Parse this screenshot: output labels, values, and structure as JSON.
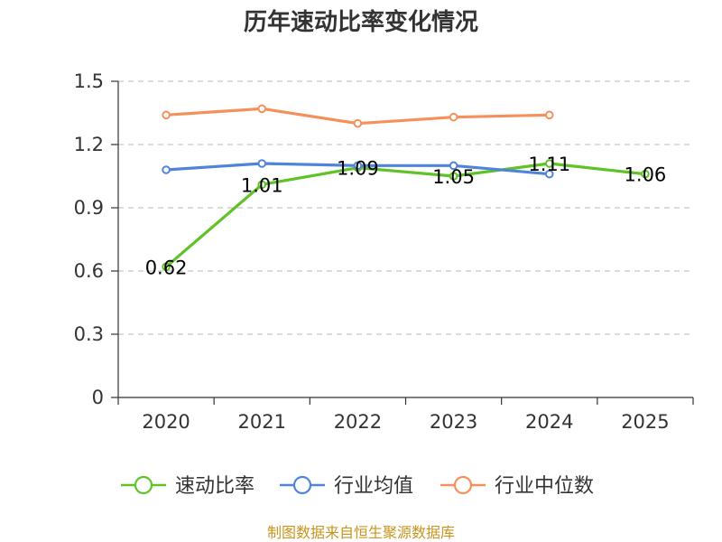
{
  "colors": {
    "series": [
      "#5fc227",
      "#4f84da",
      "#f6905a"
    ],
    "grid": "#c8c8c8",
    "axis": "#333333",
    "footer": "#c8941e"
  },
  "chart_data": {
    "type": "line",
    "title": "历年速动比率变化情况",
    "categories": [
      "2020",
      "2021",
      "2022",
      "2023",
      "2024",
      "2025"
    ],
    "ylim": [
      0,
      1.5
    ],
    "yticks": [
      "0",
      "0.3",
      "0.6",
      "0.9",
      "1.2",
      "1.5"
    ],
    "xlabel": "",
    "ylabel": "",
    "grid": true,
    "legend_position": "bottom",
    "series": [
      {
        "name": "速动比率",
        "values": [
          0.62,
          1.01,
          1.09,
          1.05,
          1.11,
          1.06
        ],
        "labels": [
          "0.62",
          "1.01",
          "1.09",
          "1.05",
          "1.11",
          "1.06"
        ]
      },
      {
        "name": "行业均值",
        "values": [
          1.08,
          1.11,
          1.1,
          1.1,
          1.06,
          null
        ]
      },
      {
        "name": "行业中位数",
        "values": [
          1.34,
          1.37,
          1.3,
          1.33,
          1.34,
          null
        ]
      }
    ]
  },
  "footer": {
    "source": "制图数据来自恒生聚源数据库"
  }
}
